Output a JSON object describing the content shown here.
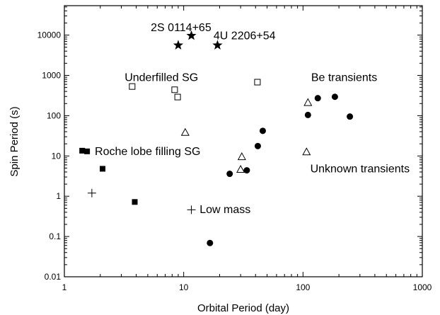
{
  "chart_data": {
    "type": "scatter",
    "xlabel": "Orbital Period (day)",
    "ylabel": "Spin Period (s)",
    "x_scale": "log",
    "y_scale": "log",
    "xlim": [
      1,
      1000
    ],
    "ylim": [
      0.01,
      50000
    ],
    "x_ticks": [
      1,
      10,
      100,
      1000
    ],
    "x_tick_labels": [
      "1",
      "10",
      "100",
      "1000"
    ],
    "y_ticks": [
      0.01,
      0.1,
      1,
      10,
      100,
      1000,
      10000
    ],
    "y_tick_labels": [
      "0.01",
      "0.1",
      "1",
      "10",
      "100",
      "1000",
      "10000"
    ],
    "grid": false,
    "series": [
      {
        "marker": "star",
        "points": [
          {
            "x": 9.0,
            "y": 5600
          },
          {
            "x": 11.6,
            "y": 9700
          },
          {
            "x": 19.2,
            "y": 5600
          }
        ]
      },
      {
        "marker": "open-square",
        "points": [
          {
            "x": 3.7,
            "y": 530
          },
          {
            "x": 8.4,
            "y": 440
          },
          {
            "x": 8.9,
            "y": 290
          },
          {
            "x": 41.5,
            "y": 680
          }
        ]
      },
      {
        "marker": "filled-square",
        "points": [
          {
            "x": 1.41,
            "y": 13.5
          },
          {
            "x": 1.55,
            "y": 13.0
          },
          {
            "x": 2.09,
            "y": 4.8
          },
          {
            "x": 3.89,
            "y": 0.72
          }
        ]
      },
      {
        "marker": "open-triangle",
        "points": [
          {
            "x": 10.3,
            "y": 38
          },
          {
            "x": 30.0,
            "y": 4.6
          },
          {
            "x": 30.7,
            "y": 9.5
          },
          {
            "x": 107,
            "y": 12.5
          },
          {
            "x": 110,
            "y": 210
          }
        ]
      },
      {
        "marker": "filled-circle",
        "points": [
          {
            "x": 16.6,
            "y": 0.069
          },
          {
            "x": 24.3,
            "y": 3.6
          },
          {
            "x": 33.8,
            "y": 4.4
          },
          {
            "x": 41.8,
            "y": 17.6
          },
          {
            "x": 46.0,
            "y": 42
          },
          {
            "x": 110,
            "y": 104
          },
          {
            "x": 133,
            "y": 272
          },
          {
            "x": 185,
            "y": 294
          },
          {
            "x": 247,
            "y": 95
          }
        ]
      },
      {
        "marker": "plus",
        "points": [
          {
            "x": 1.7,
            "y": 1.2
          },
          {
            "x": 11.6,
            "y": 0.46
          }
        ]
      }
    ],
    "annotations": [
      {
        "text": "2S 0114+65",
        "x": 5.3,
        "y": 12500
      },
      {
        "text": "4U 2206+54",
        "x": 17.8,
        "y": 7800
      },
      {
        "text": "Underfilled SG",
        "x": 3.2,
        "y": 720
      },
      {
        "text": "Be transients",
        "x": 117,
        "y": 720
      },
      {
        "text": "Roche lobe filling SG",
        "x": 1.8,
        "y": 10.5
      },
      {
        "text": "Unknown transients",
        "x": 115,
        "y": 3.9
      },
      {
        "text": "Low mass",
        "x": 13.6,
        "y": 0.38
      }
    ]
  }
}
